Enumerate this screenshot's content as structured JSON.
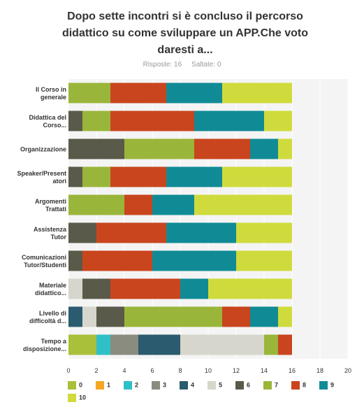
{
  "meta": {
    "responses_label": "Risposte: 16",
    "skipped_label": "Saltate: 0"
  },
  "colors": {
    "0": "#a8c03a",
    "1": "#f5a623",
    "2": "#2fbfc7",
    "3": "#8a8c80",
    "4": "#2a5b6e",
    "5": "#d6d6cc",
    "6": "#5a5a4a",
    "7": "#9ab63a",
    "8": "#c9451e",
    "9": "#108b96",
    "10": "#cfdb3c",
    "plot_bg": "#f4f4f4",
    "grid": "#ffffff"
  },
  "chart_data": {
    "type": "bar",
    "orientation": "horizontal",
    "stacked": true,
    "title": "Dopo sette incontri si è concluso il percorso didattico su come sviluppare un APP.Che voto daresti a...",
    "categories": [
      [
        "Il Corso in",
        "generale"
      ],
      [
        "Didattica del",
        "Corso..."
      ],
      [
        "Organizzazione"
      ],
      [
        "Speaker/Present",
        "atori"
      ],
      [
        "Argomenti",
        "Trattati"
      ],
      [
        "Assistenza",
        "Tutor"
      ],
      [
        "Comunicazioni",
        "Tutor/Studenti"
      ],
      [
        "Materiale",
        "didattico..."
      ],
      [
        "Livello di",
        "difficoltà d..."
      ],
      [
        "Tempo a",
        "disposizione..."
      ]
    ],
    "series": [
      {
        "name": "0",
        "values": [
          0,
          0,
          0,
          0,
          0,
          0,
          0,
          0,
          0,
          2
        ]
      },
      {
        "name": "1",
        "values": [
          0,
          0,
          0,
          0,
          0,
          0,
          0,
          0,
          0,
          0
        ]
      },
      {
        "name": "2",
        "values": [
          0,
          0,
          0,
          0,
          0,
          0,
          0,
          0,
          0,
          1
        ]
      },
      {
        "name": "3",
        "values": [
          0,
          0,
          0,
          0,
          0,
          0,
          0,
          0,
          0,
          2
        ]
      },
      {
        "name": "4",
        "values": [
          0,
          0,
          0,
          0,
          0,
          0,
          0,
          0,
          1,
          3
        ]
      },
      {
        "name": "5",
        "values": [
          0,
          0,
          0,
          0,
          0,
          0,
          0,
          1,
          1,
          6
        ]
      },
      {
        "name": "6",
        "values": [
          0,
          1,
          4,
          1,
          0,
          2,
          1,
          2,
          2,
          0
        ]
      },
      {
        "name": "7",
        "values": [
          3,
          2,
          5,
          2,
          4,
          0,
          0,
          0,
          7,
          1
        ]
      },
      {
        "name": "8",
        "values": [
          4,
          6,
          4,
          4,
          2,
          5,
          5,
          5,
          2,
          1
        ]
      },
      {
        "name": "9",
        "values": [
          4,
          5,
          2,
          4,
          3,
          5,
          6,
          2,
          2,
          0
        ]
      },
      {
        "name": "10",
        "values": [
          5,
          2,
          1,
          5,
          7,
          4,
          4,
          6,
          1,
          0
        ]
      }
    ],
    "xlim": [
      0,
      20
    ],
    "xticks": [
      0,
      2,
      4,
      6,
      8,
      10,
      12,
      14,
      16,
      18,
      20
    ],
    "grid": true,
    "legend_position": "bottom"
  }
}
